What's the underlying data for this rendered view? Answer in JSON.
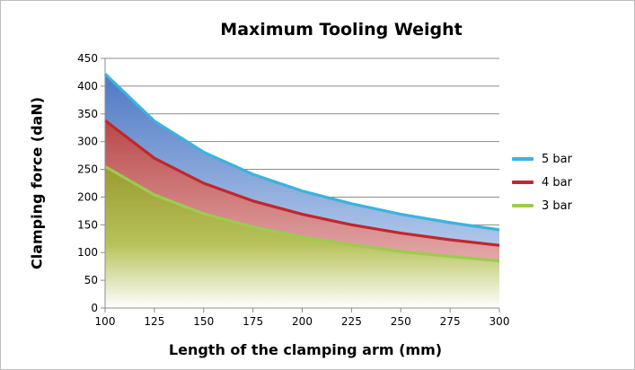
{
  "chart_data": {
    "type": "area",
    "title": "Maximum Tooling Weight",
    "xlabel": "Length of the clamping arm (mm)",
    "ylabel": "Clamping force (daN)",
    "x": [
      100,
      125,
      150,
      175,
      200,
      225,
      250,
      275,
      300
    ],
    "xlim": [
      100,
      300
    ],
    "ylim": [
      0,
      450
    ],
    "xticks": [
      100,
      125,
      150,
      175,
      200,
      225,
      250,
      275,
      300
    ],
    "yticks": [
      0,
      50,
      100,
      150,
      200,
      250,
      300,
      350,
      400,
      450
    ],
    "grid": true,
    "legend_position": "right",
    "series": [
      {
        "name": "5 bar",
        "color": "#3bb3e0",
        "values": [
          422,
          337,
          281,
          241,
          211,
          188,
          169,
          154,
          141
        ]
      },
      {
        "name": "4 bar",
        "color": "#c0272d",
        "values": [
          338,
          270,
          225,
          193,
          169,
          150,
          135,
          123,
          113
        ]
      },
      {
        "name": "3 bar",
        "color": "#9ccc4e",
        "values": [
          255,
          204,
          170,
          146,
          128,
          114,
          102,
          93,
          85
        ]
      }
    ]
  }
}
